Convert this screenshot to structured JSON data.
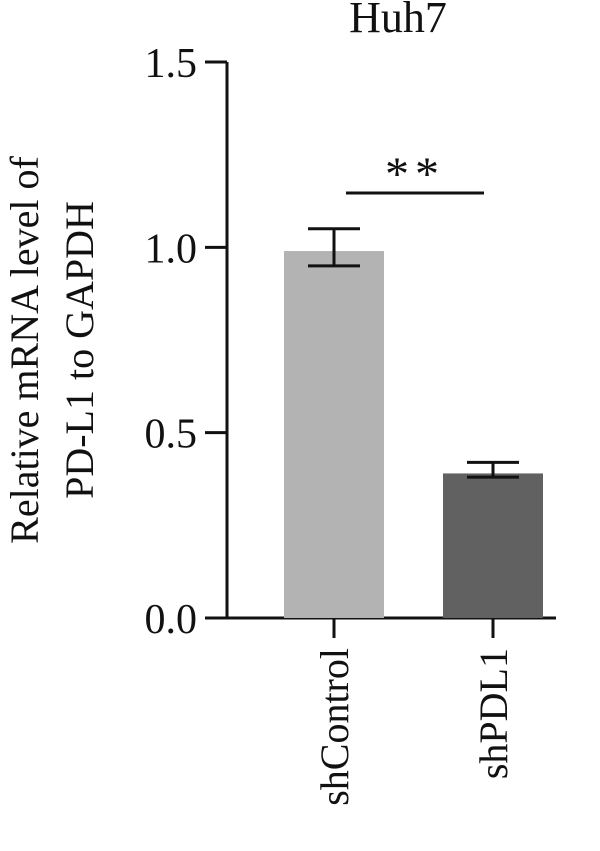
{
  "chart_data": {
    "type": "bar",
    "title": "Huh7",
    "ylabel_lines": [
      "Relative mRNA level of",
      "PD-L1 to GAPDH"
    ],
    "xlabel": "",
    "categories": [
      "shControl",
      "shPDL1"
    ],
    "values": [
      0.99,
      0.39
    ],
    "error_upper": [
      1.05,
      0.42
    ],
    "error_lower": [
      0.95,
      0.38
    ],
    "bar_colors": [
      "#b3b3b3",
      "#616161"
    ],
    "ylim": [
      0,
      1.5
    ],
    "yticks": [
      0.0,
      0.5,
      1.0,
      1.5
    ],
    "ytick_labels": [
      "0.0",
      "0.5",
      "1.0",
      "1.5"
    ],
    "significance": {
      "label": "**",
      "from": "shControl",
      "to": "shPDL1"
    },
    "grid": false,
    "legend": "none"
  }
}
